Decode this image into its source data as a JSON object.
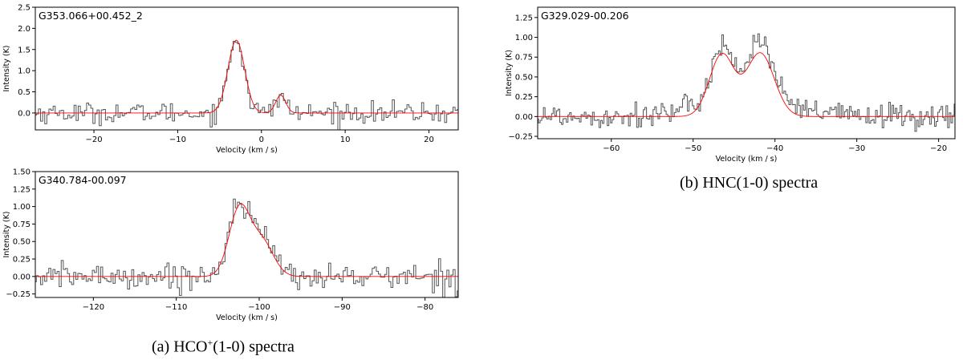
{
  "captions": {
    "a_prefix": "(a) HCO",
    "a_sup": "+",
    "a_suffix": "(1-0) spectra",
    "b": "(b) HNC(1-0) spectra"
  },
  "colors": {
    "observed": "#555555",
    "fit": "#ff0000"
  },
  "chart_data": [
    {
      "id": "p1",
      "type": "line",
      "title": "G353.066+00.452_2",
      "xlabel": "Velocity (km / s)",
      "ylabel": "Intensity (K)",
      "xlim": [
        -27,
        23.5
      ],
      "ylim": [
        -0.4,
        2.5
      ],
      "xticks": [
        -20,
        -10,
        0,
        10,
        20
      ],
      "yticks": [
        0.0,
        0.5,
        1.0,
        1.5,
        2.0,
        2.5
      ],
      "ytick_labels": [
        "0.0",
        "0.5",
        "1.0",
        "1.5",
        "2.0",
        "2.5"
      ],
      "grid": false,
      "series": [
        {
          "kind": "step",
          "noise_rms": 0.12,
          "channel_width": 0.25,
          "components": [
            {
              "amp": 1.75,
              "center": -3.0,
              "sigma": 0.95
            },
            {
              "amp": 0.45,
              "center": 2.3,
              "sigma": 0.55
            }
          ]
        },
        {
          "kind": "fit",
          "components": [
            {
              "amp": 1.72,
              "center": -3.0,
              "sigma": 1.0
            },
            {
              "amp": 0.42,
              "center": 2.3,
              "sigma": 0.6
            }
          ]
        }
      ]
    },
    {
      "id": "p2",
      "type": "line",
      "title": "G340.784-00.097",
      "xlabel": "Velocity (km / s)",
      "ylabel": "Intensity (K)",
      "xlim": [
        -127,
        -76
      ],
      "ylim": [
        -0.3,
        1.5
      ],
      "xticks": [
        -120,
        -110,
        -100,
        -90,
        -80
      ],
      "yticks": [
        -0.25,
        0.0,
        0.25,
        0.5,
        0.75,
        1.0,
        1.25,
        1.5
      ],
      "ytick_labels": [
        "−0.25",
        "0.00",
        "0.25",
        "0.50",
        "0.75",
        "1.00",
        "1.25",
        "1.50"
      ],
      "grid": false,
      "series": [
        {
          "kind": "step",
          "noise_rms": 0.09,
          "channel_width": 0.25,
          "components": [
            {
              "amp": 1.0,
              "center": -102.5,
              "sigma": 1.2
            },
            {
              "amp": 0.55,
              "center": -99.8,
              "sigma": 1.5
            }
          ]
        },
        {
          "kind": "fit",
          "components": [
            {
              "amp": 0.95,
              "center": -102.4,
              "sigma": 1.25
            },
            {
              "amp": 0.5,
              "center": -99.7,
              "sigma": 1.4
            }
          ]
        }
      ]
    },
    {
      "id": "p3",
      "type": "line",
      "title": "G329.029-00.206",
      "xlabel": "Velocity (km / s)",
      "ylabel": "Intensity (K)",
      "xlim": [
        -69,
        -18
      ],
      "ylim": [
        -0.28,
        1.38
      ],
      "xticks": [
        -60,
        -50,
        -40,
        -30,
        -20
      ],
      "yticks": [
        -0.25,
        0.0,
        0.25,
        0.5,
        0.75,
        1.0,
        1.25
      ],
      "ytick_labels": [
        "−0.25",
        "0.00",
        "0.25",
        "0.50",
        "0.75",
        "1.00",
        "1.25"
      ],
      "grid": false,
      "series": [
        {
          "kind": "step",
          "noise_rms": 0.08,
          "channel_width": 0.2,
          "components": [
            {
              "amp": 0.12,
              "center": -44,
              "sigma": 7
            },
            {
              "amp": 0.78,
              "center": -46.5,
              "sigma": 1.4
            },
            {
              "amp": 0.85,
              "center": -41.8,
              "sigma": 1.6
            }
          ]
        },
        {
          "kind": "fit",
          "components": [
            {
              "amp": 0.78,
              "center": -46.5,
              "sigma": 1.5
            },
            {
              "amp": 0.8,
              "center": -41.8,
              "sigma": 1.7
            }
          ]
        }
      ]
    }
  ]
}
